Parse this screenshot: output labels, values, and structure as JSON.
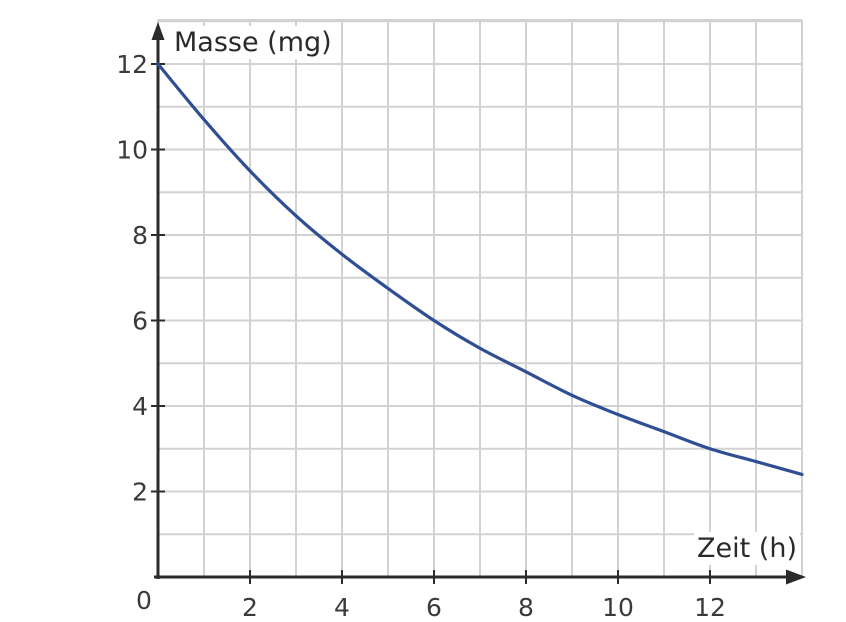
{
  "chart_data": {
    "type": "line",
    "title": "",
    "xlabel": "Zeit (h)",
    "ylabel": "Masse (mg)",
    "xlim": [
      0,
      14
    ],
    "ylim": [
      0,
      13
    ],
    "grid": true,
    "grid_minor_step": 1,
    "x_ticks": [
      2,
      4,
      6,
      8,
      10,
      12
    ],
    "x_tick_labels": [
      "2",
      "4",
      "6",
      "8",
      "10",
      "12"
    ],
    "y_ticks": [
      2,
      4,
      6,
      8,
      10,
      12
    ],
    "y_tick_labels": [
      "2",
      "4",
      "6",
      "8",
      "10",
      "12"
    ],
    "origin_label": "0",
    "series": [
      {
        "color": "#2e4f93",
        "x": [
          0,
          1,
          2,
          3,
          4,
          5,
          6,
          7,
          8,
          9,
          10,
          11,
          12,
          13,
          14
        ],
        "y": [
          12.0,
          10.7,
          9.5,
          8.45,
          7.55,
          6.75,
          6.0,
          5.35,
          4.8,
          4.25,
          3.8,
          3.4,
          3.0,
          2.7,
          2.4
        ]
      }
    ]
  }
}
